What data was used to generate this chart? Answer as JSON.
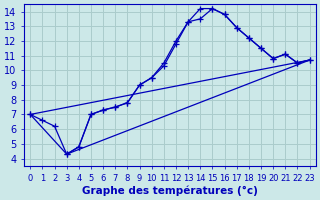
{
  "xlabel": "Graphe des températures (°c)",
  "xlim": [
    -0.5,
    23.5
  ],
  "ylim": [
    3.5,
    14.5
  ],
  "xticks": [
    0,
    1,
    2,
    3,
    4,
    5,
    6,
    7,
    8,
    9,
    10,
    11,
    12,
    13,
    14,
    15,
    16,
    17,
    18,
    19,
    20,
    21,
    22,
    23
  ],
  "yticks": [
    4,
    5,
    6,
    7,
    8,
    9,
    10,
    11,
    12,
    13,
    14
  ],
  "bg_color": "#cce8e8",
  "line_color": "#0000bb",
  "grid_color": "#aacccc",
  "lines": [
    {
      "x": [
        0,
        1,
        2,
        3,
        4,
        5,
        6,
        7,
        8,
        9,
        10,
        11,
        12,
        13,
        14,
        15,
        16,
        17,
        18,
        19,
        20,
        21,
        22,
        23
      ],
      "y": [
        7.0,
        6.6,
        6.2,
        4.3,
        4.8,
        7.0,
        7.3,
        7.5,
        7.8,
        9.0,
        9.5,
        10.5,
        12.0,
        13.3,
        13.5,
        14.2,
        13.8,
        12.9,
        12.2,
        11.5,
        10.8,
        11.1,
        10.5,
        10.7
      ],
      "has_marker": true
    },
    {
      "x": [
        0,
        3,
        4,
        5,
        6,
        7,
        8,
        9,
        10,
        11,
        12,
        13,
        14,
        15,
        16,
        17,
        18,
        19,
        20,
        21,
        22,
        23
      ],
      "y": [
        7.0,
        4.3,
        4.8,
        7.0,
        7.3,
        7.5,
        7.8,
        9.0,
        9.5,
        10.3,
        11.8,
        13.3,
        14.2,
        14.2,
        13.8,
        12.9,
        12.2,
        11.5,
        10.8,
        11.1,
        10.5,
        10.7
      ],
      "has_marker": true
    },
    {
      "x": [
        0,
        23
      ],
      "y": [
        7.0,
        10.7
      ],
      "has_marker": false
    },
    {
      "x": [
        3,
        23
      ],
      "y": [
        4.3,
        10.7
      ],
      "has_marker": false
    }
  ]
}
